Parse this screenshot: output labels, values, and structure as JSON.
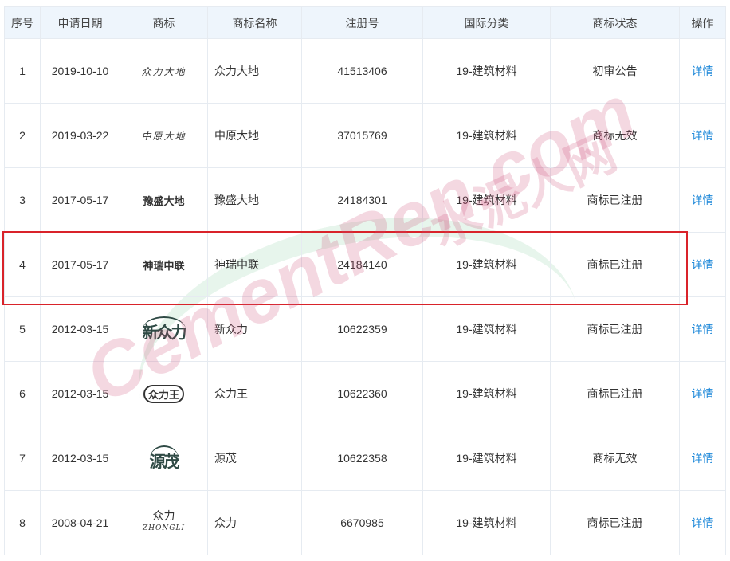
{
  "headers": [
    "序号",
    "申请日期",
    "商标",
    "商标名称",
    "注册号",
    "国际分类",
    "商标状态",
    "操作"
  ],
  "rows": [
    {
      "no": "1",
      "date": "2019-10-10",
      "logo": "众力大地",
      "logo_style": "script",
      "name": "众力大地",
      "reg": "41513406",
      "cls": "19-建筑材料",
      "status": "初审公告",
      "action": "详情"
    },
    {
      "no": "2",
      "date": "2019-03-22",
      "logo": "中原大地",
      "logo_style": "script",
      "name": "中原大地",
      "reg": "37015769",
      "cls": "19-建筑材料",
      "status": "商标无效",
      "action": "详情"
    },
    {
      "no": "3",
      "date": "2017-05-17",
      "logo": "豫盛大地",
      "logo_style": "bold",
      "name": "豫盛大地",
      "reg": "24184301",
      "cls": "19-建筑材料",
      "status": "商标已注册",
      "action": "详情"
    },
    {
      "no": "4",
      "date": "2017-05-17",
      "logo": "神瑞中联",
      "logo_style": "bold",
      "name": "神瑞中联",
      "reg": "24184140",
      "cls": "19-建筑材料",
      "status": "商标已注册",
      "action": "详情"
    },
    {
      "no": "5",
      "date": "2012-03-15",
      "logo": "新众力",
      "logo_style": "art",
      "name": "新众力",
      "reg": "10622359",
      "cls": "19-建筑材料",
      "status": "商标已注册",
      "action": "详情"
    },
    {
      "no": "6",
      "date": "2012-03-15",
      "logo": "众力王",
      "logo_style": "ring",
      "name": "众力王",
      "reg": "10622360",
      "cls": "19-建筑材料",
      "status": "商标已注册",
      "action": "详情"
    },
    {
      "no": "7",
      "date": "2012-03-15",
      "logo": "源茂",
      "logo_style": "art",
      "name": "源茂",
      "reg": "10622358",
      "cls": "19-建筑材料",
      "status": "商标无效",
      "action": "详情"
    },
    {
      "no": "8",
      "date": "2008-04-21",
      "logo": "众力",
      "logo_sub": "ZHONGLI",
      "logo_style": "two",
      "name": "众力",
      "reg": "6670985",
      "cls": "19-建筑材料",
      "status": "商标已注册",
      "action": "详情"
    }
  ],
  "highlighted_row": "4",
  "watermark": {
    "latin": "CementRen.com",
    "cjk": "水泥人网"
  },
  "colors": {
    "link": "#1e88d9",
    "highlight": "#d9232a",
    "header_bg": "#eef5fc"
  }
}
